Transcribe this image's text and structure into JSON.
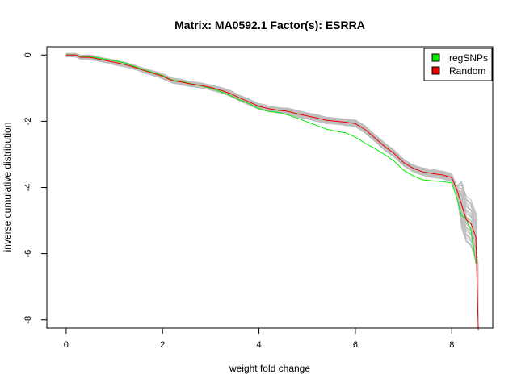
{
  "chart_data": {
    "type": "line",
    "title": "Matrix: MA0592.1 Factor(s): ESRRA",
    "xlabel": "weight fold change",
    "ylabel": "inverse cumulative distribution",
    "xlim": [
      -0.4,
      8.85
    ],
    "ylim": [
      -8.25,
      0.25
    ],
    "x_ticks": [
      0,
      2,
      4,
      6,
      8
    ],
    "y_ticks": [
      0,
      -2,
      -4,
      -6,
      -8
    ],
    "grid": false,
    "legend_position": "top-right",
    "colors": {
      "regSNPs": "#00ee00",
      "Random": "#ee0000",
      "random_samples": "#bebebe"
    },
    "series": [
      {
        "name": "regSNPs",
        "x": [
          0.0,
          0.2,
          0.3,
          0.5,
          0.8,
          1.0,
          1.2,
          1.4,
          1.6,
          1.8,
          2.0,
          2.2,
          2.4,
          2.6,
          2.8,
          3.0,
          3.2,
          3.4,
          3.6,
          3.8,
          4.0,
          4.2,
          4.4,
          4.6,
          4.8,
          5.0,
          5.2,
          5.4,
          5.6,
          5.8,
          6.0,
          6.2,
          6.4,
          6.6,
          6.8,
          7.0,
          7.2,
          7.4,
          7.6,
          7.8,
          8.0,
          8.1,
          8.2,
          8.3,
          8.4,
          8.5
        ],
        "values": [
          0.0,
          0.0,
          -0.05,
          -0.05,
          -0.12,
          -0.17,
          -0.23,
          -0.34,
          -0.44,
          -0.53,
          -0.62,
          -0.76,
          -0.8,
          -0.87,
          -0.93,
          -1.0,
          -1.1,
          -1.22,
          -1.36,
          -1.47,
          -1.62,
          -1.7,
          -1.73,
          -1.81,
          -1.91,
          -2.02,
          -2.13,
          -2.24,
          -2.3,
          -2.35,
          -2.48,
          -2.66,
          -2.82,
          -3.0,
          -3.2,
          -3.48,
          -3.65,
          -3.77,
          -3.8,
          -3.82,
          -3.86,
          -4.3,
          -4.85,
          -4.95,
          -5.3,
          -6.3
        ]
      },
      {
        "name": "Random",
        "x": [
          0.0,
          0.2,
          0.3,
          0.5,
          0.8,
          1.0,
          1.2,
          1.4,
          1.6,
          1.8,
          2.0,
          2.2,
          2.4,
          2.6,
          2.8,
          3.0,
          3.2,
          3.4,
          3.6,
          3.8,
          4.0,
          4.2,
          4.4,
          4.6,
          4.8,
          5.0,
          5.2,
          5.4,
          5.6,
          5.8,
          6.0,
          6.2,
          6.4,
          6.6,
          6.8,
          7.0,
          7.2,
          7.4,
          7.6,
          7.8,
          8.0,
          8.1,
          8.2,
          8.3,
          8.4,
          8.5,
          8.55
        ],
        "values": [
          0.0,
          0.0,
          -0.07,
          -0.07,
          -0.16,
          -0.22,
          -0.28,
          -0.36,
          -0.46,
          -0.55,
          -0.64,
          -0.77,
          -0.82,
          -0.88,
          -0.92,
          -0.98,
          -1.06,
          -1.16,
          -1.3,
          -1.42,
          -1.55,
          -1.62,
          -1.67,
          -1.7,
          -1.78,
          -1.84,
          -1.9,
          -1.97,
          -2.0,
          -2.03,
          -2.07,
          -2.25,
          -2.5,
          -2.75,
          -2.97,
          -3.25,
          -3.42,
          -3.53,
          -3.58,
          -3.62,
          -3.7,
          -4.05,
          -4.5,
          -4.97,
          -5.1,
          -5.5,
          -8.3
        ]
      }
    ]
  },
  "legend": [
    {
      "label": "regSNPs"
    },
    {
      "label": "Random"
    }
  ]
}
